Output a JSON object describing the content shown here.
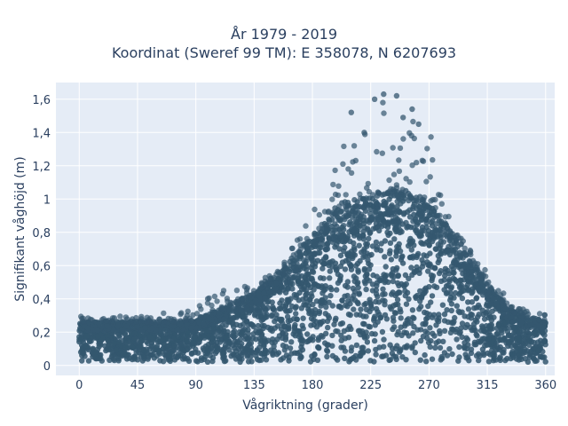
{
  "chart_data": {
    "type": "scatter",
    "title_line1": "År 1979 - 2019",
    "title_line2": "Koordinat (Sweref 99 TM): E 358078, N 6207693",
    "xlabel": "Vågriktning (grader)",
    "ylabel": "Signifikant våghöjd (m)",
    "xlim": [
      -18,
      367
    ],
    "ylim": [
      -0.06,
      1.7
    ],
    "xticks": [
      0,
      45,
      90,
      135,
      180,
      225,
      270,
      315,
      360
    ],
    "xtick_labels": [
      "0",
      "45",
      "90",
      "135",
      "180",
      "225",
      "270",
      "315",
      "360"
    ],
    "yticks": [
      0,
      0.2,
      0.4,
      0.6,
      0.8,
      1.0,
      1.2,
      1.4,
      1.6
    ],
    "ytick_labels": [
      "0",
      "0,2",
      "0,4",
      "0,6",
      "0,8",
      "1",
      "1,2",
      "1,4",
      "1,6"
    ],
    "grid": true,
    "marker_color": "#34576f",
    "envelope": {
      "direction_deg": [
        0,
        20,
        45,
        70,
        90,
        110,
        135,
        155,
        180,
        200,
        225,
        245,
        270,
        290,
        315,
        335,
        360
      ],
      "typical_max_m": [
        0.26,
        0.26,
        0.26,
        0.26,
        0.27,
        0.34,
        0.43,
        0.55,
        0.78,
        0.95,
        1.02,
        1.05,
        0.98,
        0.76,
        0.48,
        0.32,
        0.26
      ],
      "outlier_max_m": [
        0.3,
        0.29,
        0.3,
        0.33,
        0.36,
        0.45,
        0.5,
        0.58,
        0.92,
        1.31,
        1.62,
        1.55,
        1.44,
        0.82,
        0.56,
        0.36,
        0.31
      ]
    },
    "extreme_points": [
      {
        "x": 235,
        "y": 1.63
      },
      {
        "x": 245,
        "y": 1.62
      },
      {
        "x": 257,
        "y": 1.54
      },
      {
        "x": 228,
        "y": 1.6
      },
      {
        "x": 262,
        "y": 1.45
      },
      {
        "x": 210,
        "y": 1.52
      },
      {
        "x": 250,
        "y": 1.49
      },
      {
        "x": 220,
        "y": 1.4
      }
    ]
  },
  "colors": {
    "plot_bg": "#e5ecf6",
    "grid": "#ffffff",
    "text": "#2a3f5f"
  }
}
